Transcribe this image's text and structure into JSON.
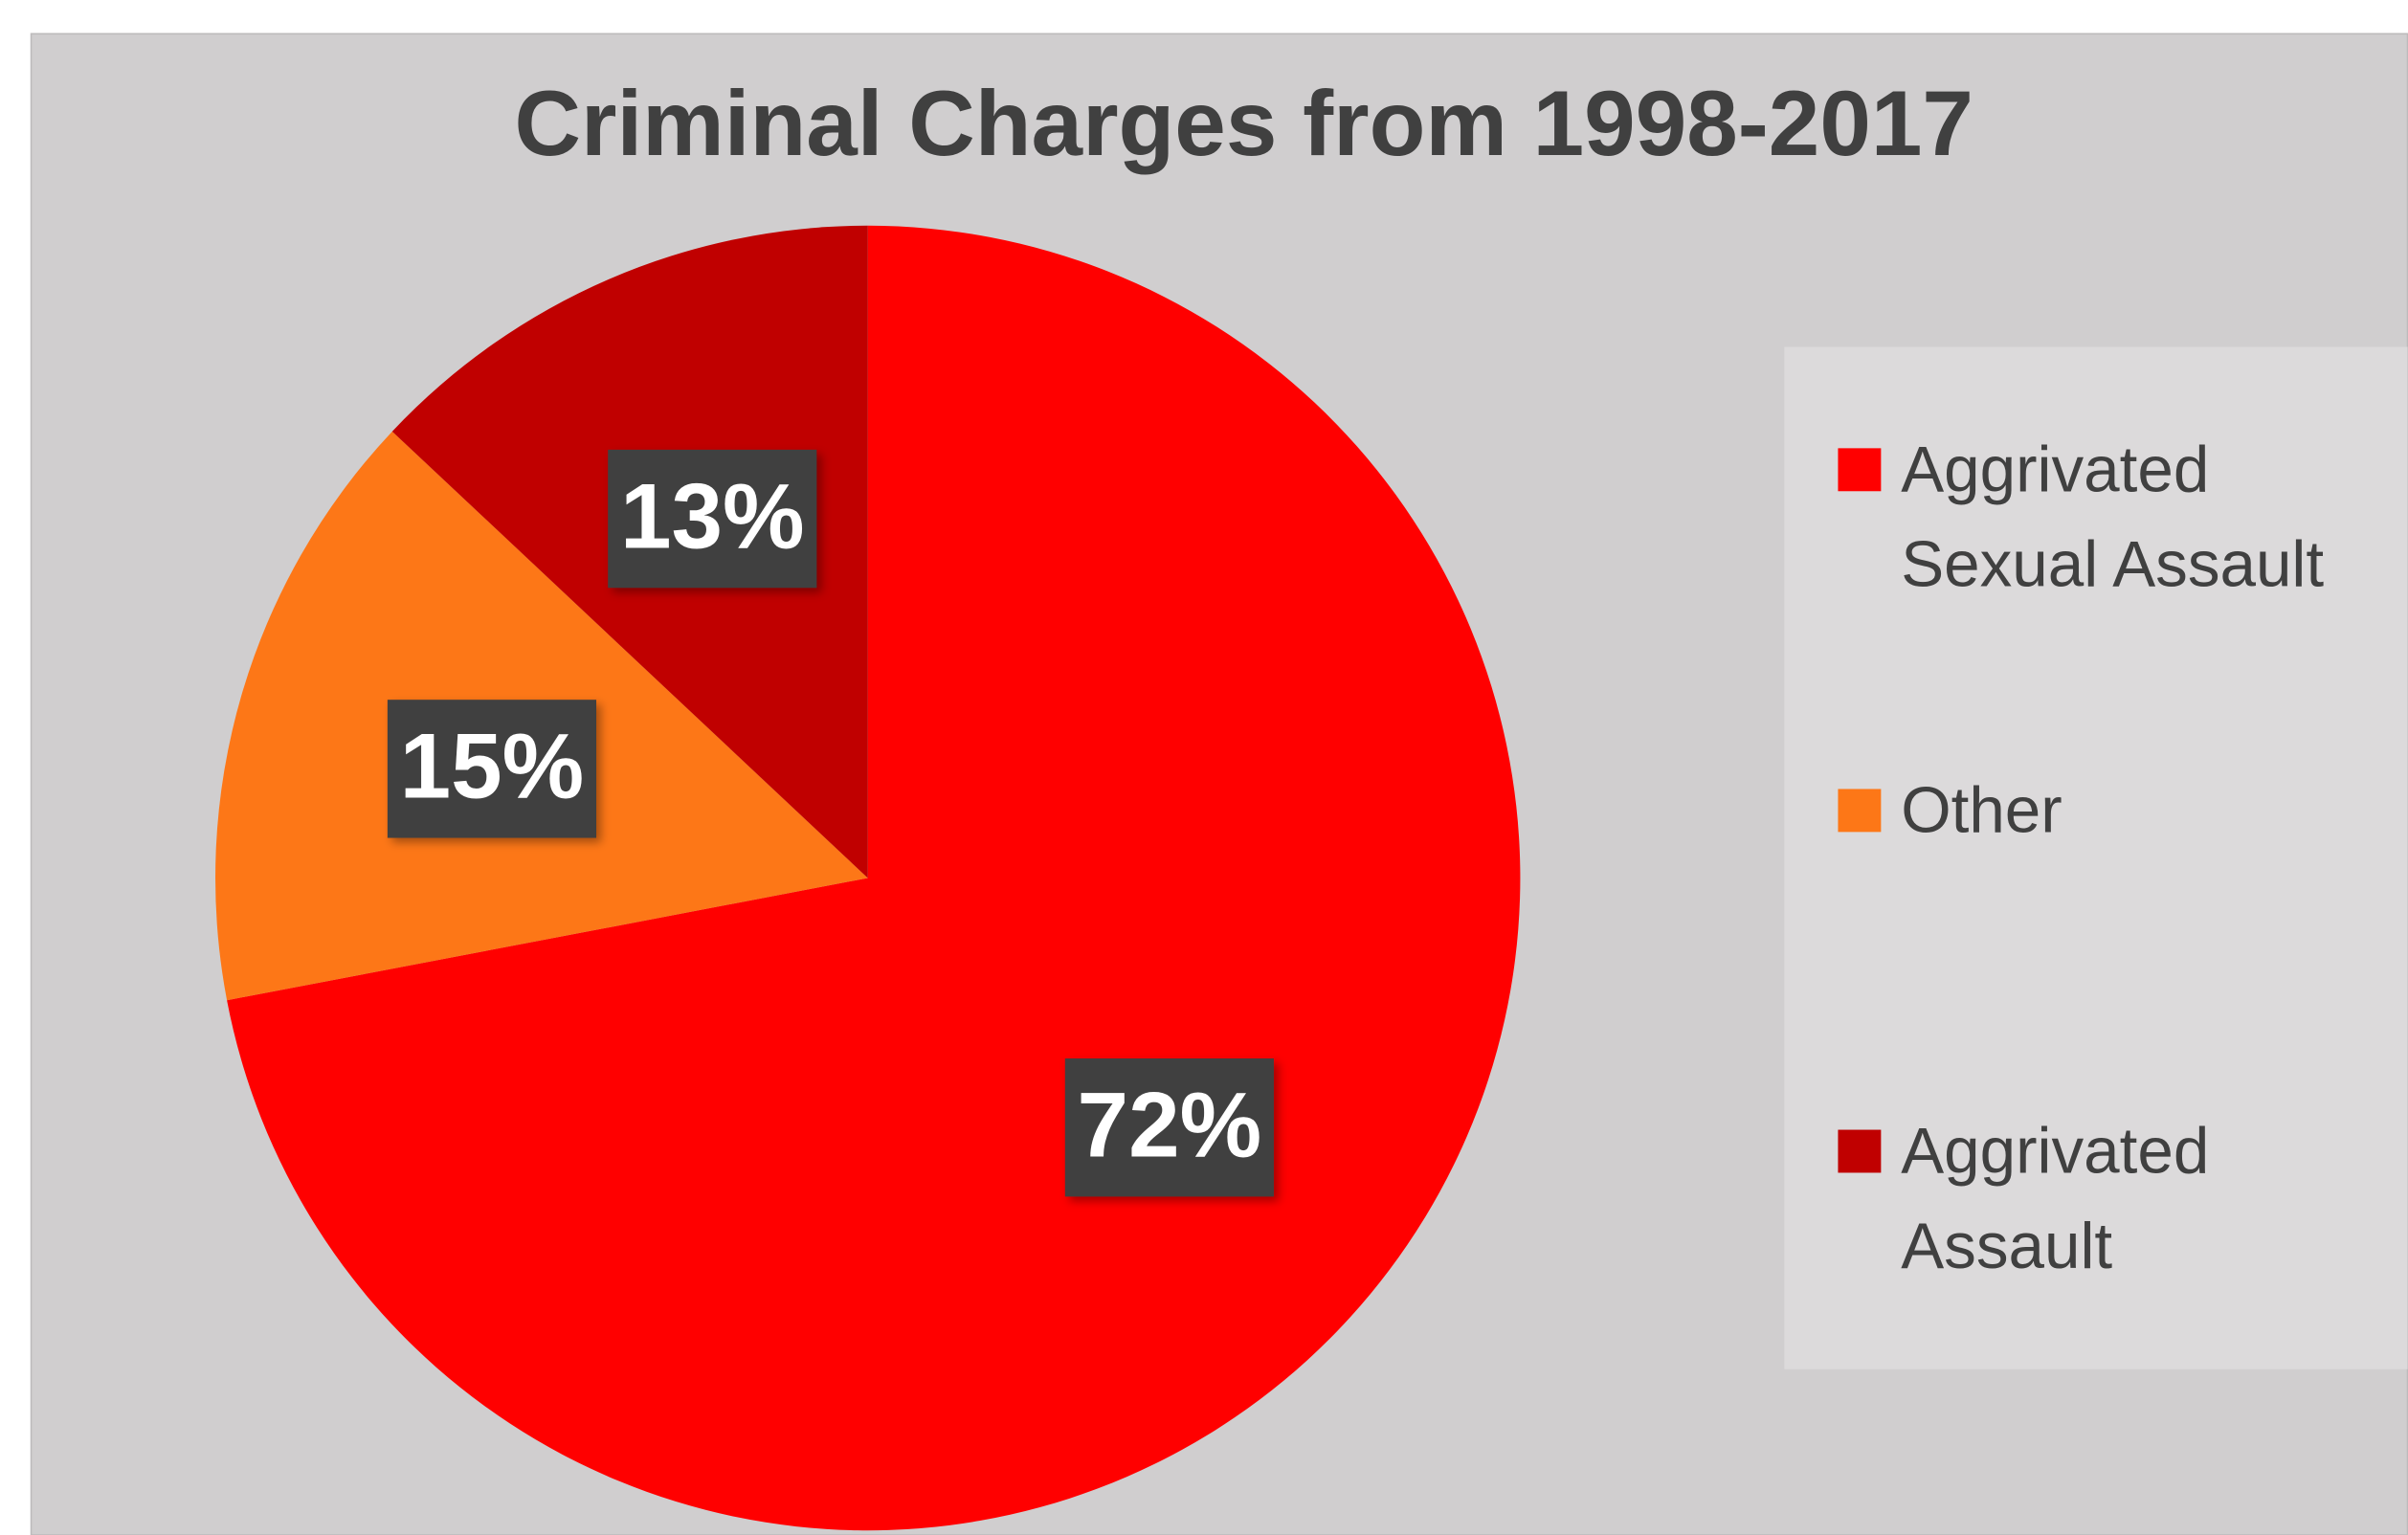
{
  "chart_data": {
    "type": "pie",
    "title": "Criminal Charges from 1998-2017",
    "categories": [
      "Aggrivated Sexual Assault",
      "Other",
      "Aggrivated Assault"
    ],
    "values": [
      72,
      15,
      13
    ],
    "value_labels": [
      "72%",
      "15%",
      "13%"
    ],
    "colors": [
      "#ff0000",
      "#fd7717",
      "#c00000"
    ],
    "legend": "right"
  }
}
